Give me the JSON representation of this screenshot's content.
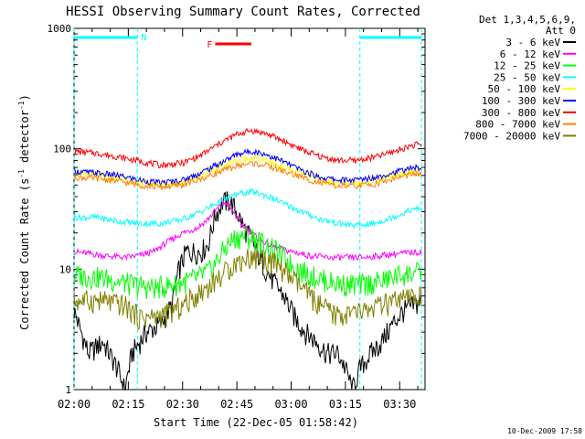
{
  "chart_data": {
    "type": "line",
    "title": "HESSI Observing Summary Count Rates, Corrected",
    "xlabel": "Start Time (22-Dec-05 01:58:42)",
    "ylabel_main": "Corrected Count Rate (s",
    "ylabel_sup1": "-1",
    "ylabel_mid": " detector",
    "ylabel_sup2": "-1",
    "ylabel_end": ")",
    "yscale": "log",
    "ylim": [
      1,
      1000
    ],
    "xlim": [
      0,
      97
    ],
    "x_unit": "minutes after 02:00",
    "x_ticks": [
      {
        "label": "02:00",
        "x": 0
      },
      {
        "label": "02:15",
        "x": 15
      },
      {
        "label": "02:30",
        "x": 30
      },
      {
        "label": "02:45",
        "x": 45
      },
      {
        "label": "03:00",
        "x": 60
      },
      {
        "label": "03:15",
        "x": 75
      },
      {
        "label": "03:30",
        "x": 90
      }
    ],
    "y_ticks": [
      {
        "label": "1",
        "y": 1
      },
      {
        "label": "10",
        "y": 10
      },
      {
        "label": "100",
        "y": 100
      },
      {
        "label": "1000",
        "y": 1000
      }
    ],
    "legend": {
      "header1": "Det 1,3,4,5,6,9,",
      "header2": "Att 0",
      "placement": "right"
    },
    "series": [
      {
        "name": "3 - 6 keV",
        "color": "#000000",
        "points": [
          [
            0,
            4.5
          ],
          [
            4,
            2
          ],
          [
            8,
            2.5
          ],
          [
            12,
            1.5
          ],
          [
            14,
            1
          ],
          [
            16,
            2
          ],
          [
            20,
            3
          ],
          [
            24,
            3.5
          ],
          [
            27,
            5
          ],
          [
            29,
            10
          ],
          [
            31,
            14
          ],
          [
            33,
            14
          ],
          [
            35,
            14
          ],
          [
            37,
            16
          ],
          [
            39,
            28
          ],
          [
            41,
            36
          ],
          [
            43,
            37
          ],
          [
            45,
            30
          ],
          [
            47,
            22
          ],
          [
            49,
            18
          ],
          [
            51,
            13
          ],
          [
            53,
            10
          ],
          [
            55,
            8
          ],
          [
            58,
            6
          ],
          [
            61,
            4
          ],
          [
            64,
            3
          ],
          [
            67,
            2.5
          ],
          [
            70,
            2
          ],
          [
            73,
            2
          ],
          [
            75,
            1.5
          ],
          [
            77,
            1
          ],
          [
            79,
            1.5
          ],
          [
            82,
            2
          ],
          [
            85,
            2.5
          ],
          [
            88,
            3.5
          ],
          [
            91,
            4.5
          ],
          [
            94,
            5
          ],
          [
            96,
            5.5
          ]
        ]
      },
      {
        "name": "6 - 12 keV",
        "color": "#ff00ff",
        "points": [
          [
            0,
            14
          ],
          [
            8,
            13
          ],
          [
            14,
            12.5
          ],
          [
            18,
            13
          ],
          [
            22,
            14
          ],
          [
            26,
            17
          ],
          [
            30,
            20
          ],
          [
            34,
            22
          ],
          [
            37,
            26
          ],
          [
            40,
            33
          ],
          [
            42,
            36
          ],
          [
            44,
            30
          ],
          [
            46,
            24
          ],
          [
            49,
            20
          ],
          [
            52,
            17
          ],
          [
            56,
            15
          ],
          [
            60,
            14
          ],
          [
            65,
            13
          ],
          [
            70,
            12.5
          ],
          [
            75,
            12.5
          ],
          [
            80,
            12.5
          ],
          [
            85,
            13
          ],
          [
            90,
            13.5
          ],
          [
            96,
            14
          ]
        ]
      },
      {
        "name": "12 - 25 keV",
        "color": "#00ff00",
        "points": [
          [
            0,
            9
          ],
          [
            8,
            8.5
          ],
          [
            16,
            7.5
          ],
          [
            22,
            7
          ],
          [
            28,
            7.5
          ],
          [
            34,
            8.5
          ],
          [
            38,
            10
          ],
          [
            41,
            14
          ],
          [
            44,
            18
          ],
          [
            47,
            19
          ],
          [
            50,
            18
          ],
          [
            53,
            16
          ],
          [
            56,
            14
          ],
          [
            60,
            11
          ],
          [
            65,
            9
          ],
          [
            70,
            8
          ],
          [
            75,
            7.5
          ],
          [
            80,
            7.5
          ],
          [
            85,
            8
          ],
          [
            90,
            9
          ],
          [
            96,
            9.5
          ]
        ]
      },
      {
        "name": "25 - 50 keV",
        "color": "#00ffff",
        "points": [
          [
            0,
            27
          ],
          [
            6,
            27
          ],
          [
            12,
            25
          ],
          [
            18,
            24
          ],
          [
            24,
            24
          ],
          [
            30,
            26
          ],
          [
            35,
            30
          ],
          [
            40,
            36
          ],
          [
            45,
            42
          ],
          [
            49,
            44
          ],
          [
            53,
            41
          ],
          [
            58,
            35
          ],
          [
            63,
            30
          ],
          [
            68,
            26
          ],
          [
            73,
            24
          ],
          [
            78,
            23
          ],
          [
            83,
            24
          ],
          [
            88,
            27
          ],
          [
            93,
            31
          ],
          [
            96,
            32
          ]
        ]
      },
      {
        "name": "50 - 100 keV",
        "color": "#ffff00",
        "points": [
          [
            0,
            62
          ],
          [
            6,
            60
          ],
          [
            12,
            57
          ],
          [
            18,
            52
          ],
          [
            24,
            50
          ],
          [
            30,
            53
          ],
          [
            35,
            60
          ],
          [
            40,
            70
          ],
          [
            45,
            80
          ],
          [
            49,
            84
          ],
          [
            53,
            80
          ],
          [
            58,
            70
          ],
          [
            63,
            62
          ],
          [
            68,
            55
          ],
          [
            73,
            52
          ],
          [
            78,
            52
          ],
          [
            83,
            55
          ],
          [
            88,
            60
          ],
          [
            93,
            65
          ],
          [
            96,
            66
          ]
        ]
      },
      {
        "name": "100 - 300 keV",
        "color": "#0000ff",
        "points": [
          [
            0,
            65
          ],
          [
            6,
            63
          ],
          [
            12,
            60
          ],
          [
            18,
            55
          ],
          [
            24,
            52
          ],
          [
            30,
            55
          ],
          [
            35,
            63
          ],
          [
            40,
            75
          ],
          [
            45,
            90
          ],
          [
            49,
            96
          ],
          [
            53,
            90
          ],
          [
            58,
            78
          ],
          [
            63,
            66
          ],
          [
            68,
            58
          ],
          [
            73,
            55
          ],
          [
            78,
            55
          ],
          [
            83,
            58
          ],
          [
            88,
            63
          ],
          [
            93,
            69
          ],
          [
            96,
            70
          ]
        ]
      },
      {
        "name": "300 - 800 keV",
        "color": "#ff0000",
        "points": [
          [
            0,
            95
          ],
          [
            6,
            92
          ],
          [
            12,
            86
          ],
          [
            18,
            79
          ],
          [
            24,
            73
          ],
          [
            30,
            76
          ],
          [
            35,
            88
          ],
          [
            40,
            110
          ],
          [
            45,
            132
          ],
          [
            49,
            142
          ],
          [
            53,
            134
          ],
          [
            58,
            116
          ],
          [
            63,
            98
          ],
          [
            68,
            86
          ],
          [
            73,
            80
          ],
          [
            78,
            80
          ],
          [
            83,
            85
          ],
          [
            88,
            94
          ],
          [
            93,
            106
          ],
          [
            96,
            110
          ]
        ]
      },
      {
        "name": "800 - 7000 keV",
        "color": "#ff8000",
        "points": [
          [
            0,
            58
          ],
          [
            6,
            57
          ],
          [
            12,
            54
          ],
          [
            18,
            50
          ],
          [
            24,
            48
          ],
          [
            30,
            50
          ],
          [
            35,
            56
          ],
          [
            40,
            64
          ],
          [
            45,
            72
          ],
          [
            49,
            76
          ],
          [
            53,
            73
          ],
          [
            58,
            65
          ],
          [
            63,
            58
          ],
          [
            68,
            52
          ],
          [
            73,
            49
          ],
          [
            78,
            49
          ],
          [
            83,
            51
          ],
          [
            88,
            56
          ],
          [
            93,
            61
          ],
          [
            96,
            62
          ]
        ]
      },
      {
        "name": "7000 - 20000 keV",
        "color": "#808000",
        "points": [
          [
            0,
            5.5
          ],
          [
            8,
            5.5
          ],
          [
            14,
            5
          ],
          [
            18,
            4
          ],
          [
            22,
            4
          ],
          [
            26,
            4.3
          ],
          [
            30,
            5
          ],
          [
            35,
            6.5
          ],
          [
            40,
            8.5
          ],
          [
            44,
            11
          ],
          [
            48,
            12.5
          ],
          [
            52,
            12.5
          ],
          [
            56,
            11
          ],
          [
            60,
            8.5
          ],
          [
            64,
            6.5
          ],
          [
            68,
            5
          ],
          [
            72,
            4.2
          ],
          [
            76,
            4.2
          ],
          [
            80,
            4.5
          ],
          [
            85,
            5
          ],
          [
            90,
            5.5
          ],
          [
            96,
            6
          ]
        ]
      }
    ],
    "annotations": [
      {
        "label": "N",
        "color": "#00ffff",
        "intervals": [
          [
            0,
            17.5
          ],
          [
            79,
            96
          ]
        ]
      },
      {
        "label": "F",
        "color": "#ff0000",
        "intervals": [
          [
            39,
            49
          ]
        ]
      }
    ],
    "grid": false
  },
  "footer": {
    "timestamp": "10-Dec-2009 17:58"
  }
}
